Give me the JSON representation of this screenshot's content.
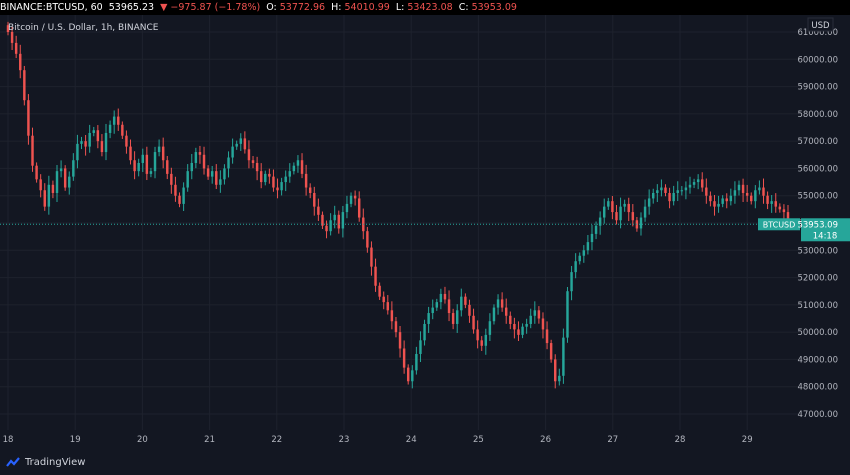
{
  "header": {
    "symbol": "BINANCE:BTCUSD, 60",
    "last": "53965.23",
    "change": "−975.87 (−1.78%)",
    "open_label": "O:",
    "open": "53772.96",
    "high_label": "H:",
    "high": "54010.99",
    "low_label": "L:",
    "low": "53423.08",
    "close_label": "C:",
    "close": "53953.09"
  },
  "footer": {
    "brand": "TradingView"
  },
  "colors": {
    "up": "#26a69a",
    "down": "#ef5350",
    "background": "#131722",
    "grid": "#1e222d"
  },
  "chart_data": {
    "type": "candlestick",
    "title": "Bitcoin / U.S. Dollar, 1h, BINANCE",
    "currency": "USD",
    "ylim": [
      46700,
      61300
    ],
    "y_ticks": [
      "61000.00",
      "60000.00",
      "59000.00",
      "58000.00",
      "57000.00",
      "56000.00",
      "55000.00",
      "54000.00",
      "53000.00",
      "52000.00",
      "51000.00",
      "50000.00",
      "49000.00",
      "48000.00",
      "47000.00"
    ],
    "x_labels": [
      "18",
      "19",
      "20",
      "21",
      "22",
      "23",
      "24",
      "25",
      "26",
      "27",
      "28",
      "29"
    ],
    "last_price": {
      "symbol": "BTCUSD",
      "price": "53953.09",
      "value": 53953.09,
      "countdown": "14:18"
    },
    "series_close": [
      61000,
      60600,
      60200,
      59600,
      58500,
      57200,
      56100,
      55600,
      55200,
      54600,
      55400,
      55100,
      55900,
      56000,
      55300,
      55700,
      56300,
      56900,
      57000,
      56800,
      57300,
      57400,
      57000,
      56600,
      57300,
      57600,
      57900,
      57600,
      57200,
      56800,
      56300,
      55900,
      56200,
      56500,
      55800,
      55900,
      56600,
      56800,
      56300,
      55800,
      55400,
      55000,
      54700,
      55300,
      55900,
      56200,
      56600,
      56500,
      56000,
      55700,
      55900,
      55400,
      55600,
      56000,
      56400,
      56800,
      56900,
      57100,
      56700,
      56300,
      56200,
      55900,
      55500,
      55800,
      55700,
      55300,
      55200,
      55500,
      55700,
      55900,
      56100,
      56300,
      55800,
      55300,
      55100,
      54600,
      54300,
      53900,
      53700,
      54100,
      54300,
      53800,
      54400,
      54700,
      55000,
      54900,
      54200,
      53700,
      53100,
      52400,
      51700,
      51300,
      51100,
      50800,
      50400,
      50000,
      49400,
      48700,
      48200,
      48600,
      49200,
      49700,
      50300,
      50700,
      50900,
      51100,
      51400,
      51200,
      50700,
      50300,
      50800,
      51300,
      51000,
      50600,
      50100,
      49700,
      49500,
      49900,
      50400,
      50900,
      51200,
      50900,
      50600,
      50300,
      50100,
      49900,
      50200,
      50300,
      50600,
      50800,
      50500,
      50100,
      49600,
      49000,
      48200,
      48400,
      49800,
      51500,
      52200,
      52600,
      52800,
      53000,
      53300,
      53600,
      53900,
      54200,
      54600,
      54800,
      54400,
      54100,
      54600,
      54700,
      54400,
      54100,
      53800,
      54200,
      54600,
      54900,
      55100,
      55200,
      55300,
      55100,
      54800,
      55100,
      55200,
      55200,
      55300,
      55400,
      55500,
      55600,
      55300,
      55000,
      54800,
      54600,
      54700,
      54900,
      54800,
      55000,
      55200,
      55400,
      55100,
      55000,
      54800,
      55200,
      55300,
      55000,
      54700,
      54800,
      54600,
      54500,
      54400,
      53950
    ]
  }
}
